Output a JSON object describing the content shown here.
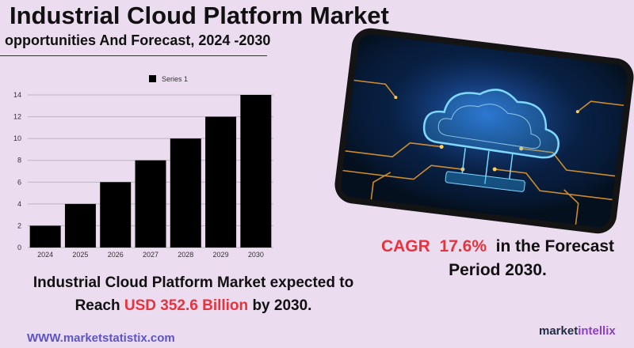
{
  "title": "Industrial Cloud Platform Market",
  "subtitle": "opportunities And Forecast, 2024 -2030",
  "cagr": {
    "label": "CAGR",
    "value": "17.6%",
    "text1": "in the  Forecast",
    "text2": "Period  2030."
  },
  "reach": {
    "line1": "Industrial Cloud Platform Market expected to",
    "prefix": "Reach",
    "highlight": "USD  352.6 Billion",
    "suffix": "by 2030."
  },
  "website": "WWW.marketstatistix.com",
  "brand": {
    "part1": "market",
    "part2": "intellix"
  },
  "image": {
    "icon": "cloud-circuit-icon"
  },
  "colors": {
    "accent_red": "#e8333d",
    "bar": "#000000",
    "background": "#ecdcf0",
    "link": "#5d55c4"
  },
  "chart_data": {
    "type": "bar",
    "categories": [
      "2024",
      "2025",
      "2026",
      "2027",
      "2028",
      "2029",
      "2030"
    ],
    "series": [
      {
        "name": "Series 1",
        "values": [
          2,
          4,
          6,
          8,
          10,
          12,
          14
        ]
      }
    ],
    "yticks": [
      0,
      2,
      4,
      6,
      8,
      10,
      12,
      14
    ],
    "ylim": [
      0,
      14
    ],
    "grid": true,
    "legend": "top"
  }
}
